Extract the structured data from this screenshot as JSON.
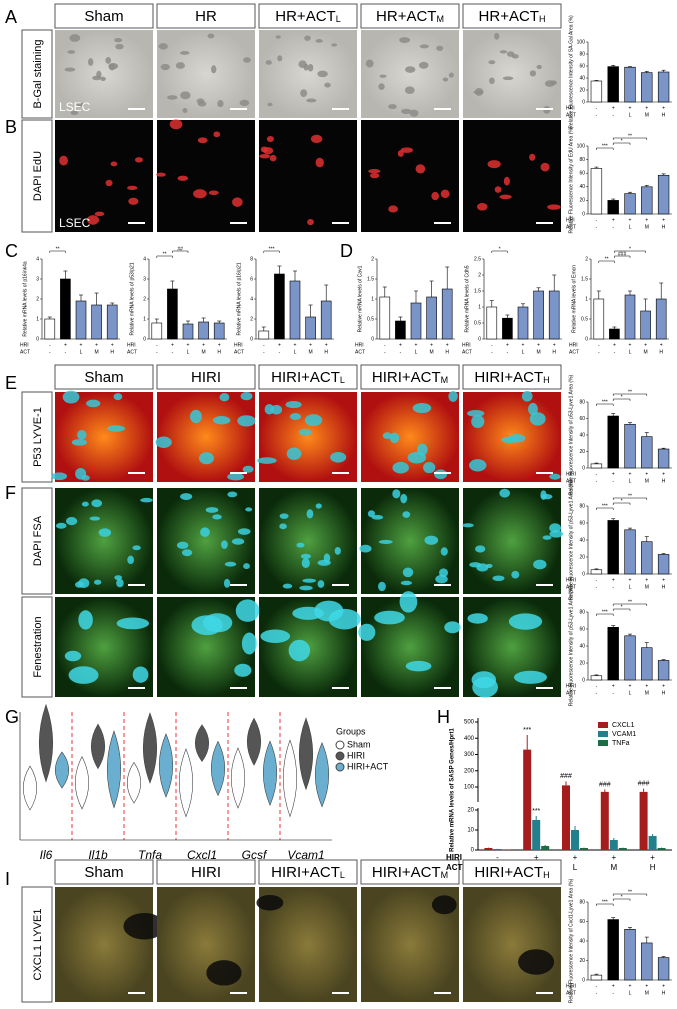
{
  "figure": {
    "bar_colors": [
      "#ffffff",
      "#000000",
      "#7b95c9",
      "#7b95c9",
      "#7b95c9"
    ],
    "levels": {
      "hiri": [
        "-",
        "+",
        "+",
        "+",
        "+"
      ],
      "act": [
        "-",
        "-",
        "L",
        "M",
        "H"
      ]
    },
    "A": {
      "label": "A",
      "columns": [
        {
          "text": "Sham"
        },
        {
          "text": "HR"
        },
        {
          "text": "HR+ACT",
          "sub": "L"
        },
        {
          "text": "HR+ACT",
          "sub": "M"
        },
        {
          "text": "HR+ACT",
          "sub": "H"
        }
      ],
      "row_label": "B-Gal staining",
      "cell_label": "LSEC",
      "chart": {
        "ylabel": "Relative Fluorescence Intensity of SA-Gal Area (%)",
        "rows": [
          "HRI",
          "ACT"
        ],
        "ylim": [
          0,
          100
        ],
        "yticks": [
          0,
          20,
          40,
          60,
          80,
          100
        ],
        "values": [
          35,
          59,
          58,
          49,
          50
        ],
        "errors": [
          1,
          2,
          1,
          2,
          3
        ],
        "sig": []
      }
    },
    "B": {
      "label": "B",
      "row_label": "DAPI EdU",
      "cell_label": "LSEC",
      "chart": {
        "ylabel": "Relative Fluorescence Intensity of EdU Area (%)",
        "rows": [
          "HRI",
          "ACT"
        ],
        "ylim": [
          0,
          100
        ],
        "yticks": [
          0,
          20,
          40,
          60,
          80,
          100
        ],
        "values": [
          67,
          20,
          30,
          40,
          57
        ],
        "errors": [
          2,
          2,
          2,
          2,
          2
        ],
        "sig": [
          "***",
          "*",
          "**"
        ]
      }
    },
    "C": {
      "label": "C",
      "charts": [
        {
          "ylabel": "Relative mRNA levels of p16ink4a",
          "rows": [
            "HRI",
            "ACT"
          ],
          "ylim": [
            0,
            4
          ],
          "yticks": [
            0,
            1,
            2,
            3,
            4
          ],
          "values": [
            1,
            3,
            1.9,
            1.7,
            1.7
          ],
          "errors": [
            0.1,
            0.4,
            0.3,
            0.6,
            0.1
          ],
          "sig": [
            "**"
          ]
        },
        {
          "ylabel": "Relative mRNA levels of p53/p21",
          "rows": [
            "HRI",
            "ACT"
          ],
          "ylim": [
            0,
            4
          ],
          "yticks": [
            0,
            1,
            2,
            3,
            4
          ],
          "values": [
            0.8,
            2.5,
            0.75,
            0.85,
            0.8
          ],
          "errors": [
            0.2,
            0.4,
            0.15,
            0.2,
            0.1
          ],
          "sig": [
            "**",
            "##"
          ]
        },
        {
          "ylabel": "Relative mRNA levels of p16/p21",
          "rows": [
            "HRI",
            "ACT"
          ],
          "ylim": [
            0,
            8
          ],
          "yticks": [
            0,
            2,
            4,
            6,
            8
          ],
          "values": [
            0.8,
            6.5,
            5.8,
            2.2,
            3.8
          ],
          "errors": [
            0.4,
            0.8,
            1,
            1.2,
            1.6
          ],
          "sig": [
            "***"
          ]
        }
      ]
    },
    "D": {
      "label": "D",
      "charts": [
        {
          "ylabel": "Relative mRNA levels of Cav1",
          "rows": [
            "HRI",
            "ACT"
          ],
          "ylim": [
            0,
            2
          ],
          "yticks": [
            0,
            0.5,
            1,
            1.5,
            2
          ],
          "values": [
            1.05,
            0.45,
            0.9,
            1.05,
            1.25
          ],
          "errors": [
            0.25,
            0.1,
            0.3,
            0.4,
            0.55
          ],
          "sig": []
        },
        {
          "ylabel": "Relative mRNA levels of Cdh5",
          "rows": [
            "HRI",
            "ACT"
          ],
          "ylim": [
            0,
            2.5
          ],
          "yticks": [
            0,
            0.5,
            1,
            1.5,
            2,
            2.5
          ],
          "values": [
            1,
            0.65,
            1,
            1.5,
            1.5
          ],
          "errors": [
            0.2,
            0.1,
            0.1,
            0.1,
            0.5
          ],
          "sig": [
            "*"
          ]
        },
        {
          "ylabel": "Relative mRNA levels of Emcn",
          "rows": [
            "HRI",
            "ACT"
          ],
          "ylim": [
            0,
            2
          ],
          "yticks": [
            0,
            0.5,
            1,
            1.5,
            2
          ],
          "values": [
            1,
            0.25,
            1.1,
            0.7,
            1
          ],
          "errors": [
            0.2,
            0.05,
            0.1,
            0.3,
            0.4
          ],
          "sig": [
            "**",
            "###",
            "*"
          ]
        }
      ]
    },
    "E": {
      "label": "E",
      "columns": [
        {
          "text": "Sham"
        },
        {
          "text": "HIRI"
        },
        {
          "text": "HIRI+ACT",
          "sub": "L"
        },
        {
          "text": "HIRI+ACT",
          "sub": "M"
        },
        {
          "text": "HIRI+ACT",
          "sub": "H"
        }
      ],
      "row_label": "P53 LYVE-1",
      "chart": {
        "ylabel": "Relative Fluorescence Intensity of p53-Lyve1 Area (%)",
        "rows": [
          "HIRI",
          "ACT"
        ],
        "ylim": [
          0,
          80
        ],
        "yticks": [
          0,
          20,
          40,
          60,
          80
        ],
        "values": [
          5,
          63,
          53,
          38,
          23
        ],
        "errors": [
          1,
          3,
          2,
          5,
          1
        ],
        "sig": [
          "***",
          "*",
          "**"
        ]
      }
    },
    "F": {
      "label": "F",
      "row_labels": [
        "DAPI FSA",
        "Fenestration"
      ],
      "charts": [
        {
          "ylabel": "Relative Fluorescence Intensity of p53-Lyve1 Area (%)",
          "rows": [
            "HIRI",
            "ACT"
          ],
          "ylim": [
            0,
            80
          ],
          "yticks": [
            0,
            20,
            40,
            60,
            80
          ],
          "values": [
            5,
            63,
            52,
            38,
            23
          ],
          "errors": [
            1,
            2,
            2,
            6,
            1
          ],
          "sig": [
            "***",
            "*",
            "**"
          ]
        },
        {
          "ylabel": "Relative Fluorescence Intensity of p53-Lyve1 Area (%)",
          "rows": [
            "HIRI",
            "ACT"
          ],
          "ylim": [
            0,
            80
          ],
          "yticks": [
            0,
            20,
            40,
            60,
            80
          ],
          "values": [
            5,
            62,
            52,
            38,
            23
          ],
          "errors": [
            1,
            2,
            2,
            6,
            1
          ],
          "sig": [
            "***",
            "*",
            "**"
          ]
        }
      ]
    },
    "G": {
      "label": "G",
      "genes": [
        "Il6",
        "Il1b",
        "Tnfa",
        "Cxcl1",
        "Gcsf",
        "Vcam1"
      ],
      "legend_title": "Groups",
      "legend": [
        "Sham",
        "HIRI",
        "HIRI+ACT"
      ]
    },
    "H": {
      "label": "H",
      "ylabel": "Relative mRNA levels of SASP Genes/Hprt1",
      "rows": [
        "HIRI",
        "ACT"
      ],
      "ylim_lower": [
        0,
        20
      ],
      "yticks_lower": [
        0,
        10,
        20
      ],
      "ylim_upper": [
        20,
        500
      ],
      "yticks_upper": [
        100,
        200,
        300,
        400,
        500
      ],
      "series": [
        {
          "name": "CXCL1",
          "color": "#a51d1d",
          "values": [
            1,
            330,
            110,
            70,
            70
          ],
          "errors": [
            0.2,
            90,
            25,
            15,
            20
          ],
          "marks": [
            null,
            "***",
            "###",
            "###",
            "###"
          ]
        },
        {
          "name": "VCAM1",
          "color": "#21808c",
          "values": [
            0.5,
            15,
            10,
            5,
            7
          ],
          "errors": [
            0.1,
            2,
            2,
            1,
            1
          ],
          "marks": [
            null,
            "***",
            null,
            null,
            null
          ]
        },
        {
          "name": "TNFa",
          "color": "#1e6b45",
          "values": [
            0.3,
            2,
            1,
            1,
            1
          ],
          "errors": [
            0.1,
            0.5,
            0.2,
            0.2,
            0.2
          ],
          "marks": [
            null,
            null,
            null,
            null,
            null
          ]
        }
      ]
    },
    "I": {
      "label": "I",
      "columns": [
        {
          "text": "Sham"
        },
        {
          "text": "HIRI"
        },
        {
          "text": "HIRI+ACT",
          "sub": "L"
        },
        {
          "text": "HIRI+ACT",
          "sub": "M"
        },
        {
          "text": "HIRI+ACT",
          "sub": "H"
        }
      ],
      "row_label": "CXCL1 LYVE1",
      "chart": {
        "ylabel": "Relative Fluorescence Intensity of Cxcl1-Lyve1 Area (%)",
        "rows": [
          "HIRI",
          "ACT"
        ],
        "ylim": [
          0,
          80
        ],
        "yticks": [
          0,
          20,
          40,
          60,
          80
        ],
        "values": [
          5,
          62,
          52,
          38,
          23
        ],
        "errors": [
          1,
          2,
          2,
          6,
          1
        ],
        "sig": [
          "***",
          "*",
          "**"
        ]
      }
    }
  }
}
